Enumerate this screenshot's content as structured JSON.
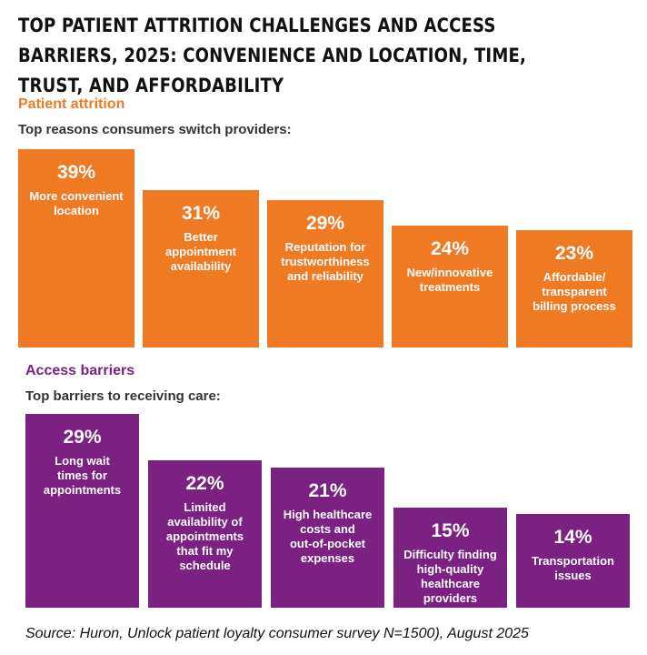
{
  "title": "Top patient attrition challenges and access barriers, 2025: Convenience and location, time, trust, and affordability",
  "colors": {
    "attrition": "#f07a23",
    "access": "#7a2182",
    "attrition_text": "#f07a23",
    "access_text": "#7a2182"
  },
  "chart_data": [
    {
      "type": "bar",
      "section_title": "Patient attrition",
      "subtitle": "Top reasons consumers switch providers:",
      "categories": [
        "More convenient\nlocation",
        "Better\nappointment\navailability",
        "Reputation for\ntrustworthiness\nand reliability",
        "New/innovative\ntreatments",
        "Affordable/\ntransparent\nbilling process"
      ],
      "values": [
        39,
        31,
        29,
        24,
        23
      ],
      "value_labels": [
        "39%",
        "31%",
        "29%",
        "24%",
        "23%"
      ],
      "unit": "%",
      "ylim": [
        0,
        39
      ]
    },
    {
      "type": "bar",
      "section_title": "Access barriers",
      "subtitle": "Top barriers to receiving care:",
      "categories": [
        "Long wait\ntimes for\nappointments",
        "Limited\navailability of\nappointments\nthat fit my\nschedule",
        "High healthcare\ncosts and\nout-of-pocket\nexpenses",
        "Difficulty finding\nhigh-quality\nhealthcare\nproviders",
        "Transportation\nissues"
      ],
      "values": [
        29,
        22,
        21,
        15,
        14
      ],
      "value_labels": [
        "29%",
        "22%",
        "21%",
        "15%",
        "14%"
      ],
      "unit": "%",
      "ylim": [
        0,
        29
      ]
    }
  ],
  "source": "Source: Huron, Unlock patient loyalty consumer survey N=1500), August 2025"
}
